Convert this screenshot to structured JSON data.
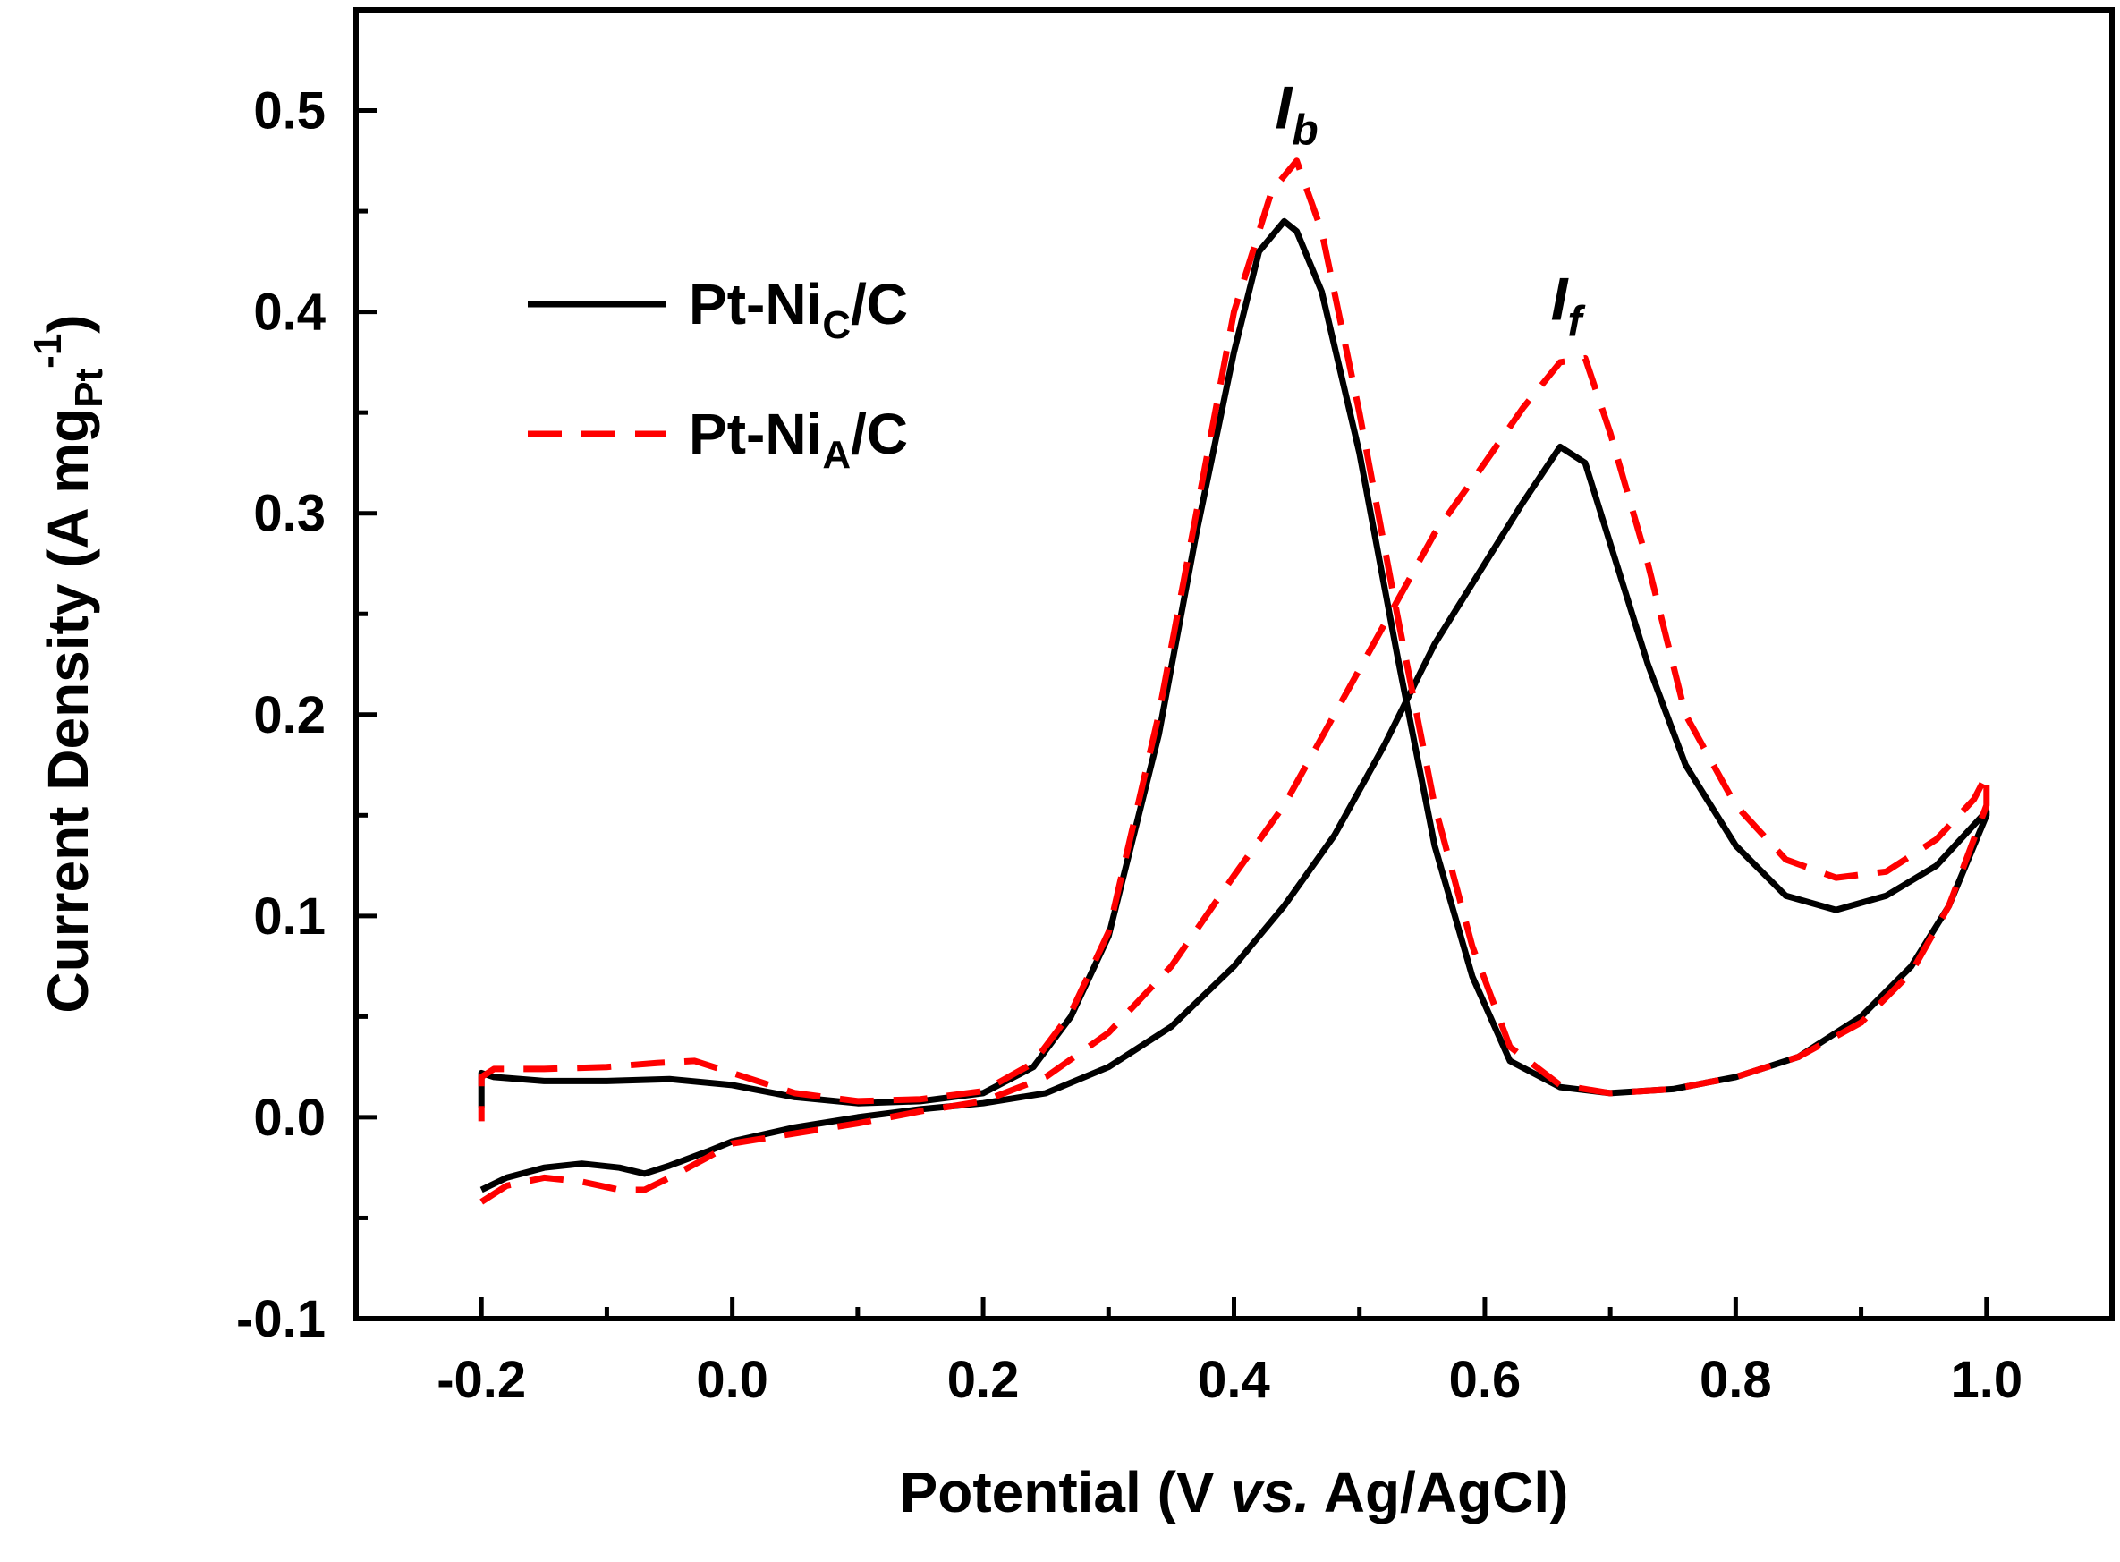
{
  "chart_data": {
    "type": "line",
    "xlabel": {
      "pre": "Potential (V ",
      "italic": "vs.",
      "post": " Ag/AgCl)"
    },
    "ylabel": {
      "main": "Current Density (A mg",
      "sub": "Pt",
      "sup": "-1",
      "close": ")"
    },
    "xlim": [
      -0.3,
      1.1
    ],
    "ylim": [
      -0.1,
      0.55
    ],
    "xticks": [
      "-0.2",
      "0.0",
      "0.2",
      "0.4",
      "0.6",
      "0.8",
      "1.0"
    ],
    "yticks": [
      "-0.1",
      "0.0",
      "0.1",
      "0.2",
      "0.3",
      "0.4",
      "0.5"
    ],
    "grid": false,
    "legend_position": "upper-left",
    "annotations": [
      {
        "base": "I",
        "sub": "b",
        "x": 0.45,
        "y": 0.5
      },
      {
        "base": "I",
        "sub": "f",
        "x": 0.665,
        "y": 0.405
      }
    ],
    "series": [
      {
        "name": {
          "base": "Pt-Ni",
          "sub": "C",
          "tail": "/C"
        },
        "color": "#000000",
        "style": "solid",
        "points": [
          [
            -0.2,
            -0.036
          ],
          [
            -0.18,
            -0.03
          ],
          [
            -0.15,
            -0.025
          ],
          [
            -0.12,
            -0.023
          ],
          [
            -0.09,
            -0.025
          ],
          [
            -0.07,
            -0.028
          ],
          [
            -0.05,
            -0.024
          ],
          [
            -0.02,
            -0.017
          ],
          [
            0.0,
            -0.012
          ],
          [
            0.05,
            -0.005
          ],
          [
            0.1,
            0.0
          ],
          [
            0.15,
            0.004
          ],
          [
            0.2,
            0.007
          ],
          [
            0.25,
            0.012
          ],
          [
            0.3,
            0.025
          ],
          [
            0.35,
            0.045
          ],
          [
            0.4,
            0.075
          ],
          [
            0.44,
            0.105
          ],
          [
            0.48,
            0.14
          ],
          [
            0.52,
            0.185
          ],
          [
            0.56,
            0.235
          ],
          [
            0.6,
            0.275
          ],
          [
            0.63,
            0.305
          ],
          [
            0.66,
            0.333
          ],
          [
            0.68,
            0.325
          ],
          [
            0.7,
            0.285
          ],
          [
            0.73,
            0.225
          ],
          [
            0.76,
            0.175
          ],
          [
            0.8,
            0.135
          ],
          [
            0.84,
            0.11
          ],
          [
            0.88,
            0.103
          ],
          [
            0.92,
            0.11
          ],
          [
            0.96,
            0.125
          ],
          [
            1.0,
            0.152
          ],
          [
            1.0,
            0.15
          ],
          [
            0.97,
            0.105
          ],
          [
            0.94,
            0.075
          ],
          [
            0.9,
            0.05
          ],
          [
            0.85,
            0.03
          ],
          [
            0.8,
            0.02
          ],
          [
            0.75,
            0.014
          ],
          [
            0.7,
            0.012
          ],
          [
            0.66,
            0.015
          ],
          [
            0.62,
            0.028
          ],
          [
            0.59,
            0.07
          ],
          [
            0.56,
            0.135
          ],
          [
            0.53,
            0.23
          ],
          [
            0.5,
            0.33
          ],
          [
            0.47,
            0.41
          ],
          [
            0.45,
            0.44
          ],
          [
            0.44,
            0.445
          ],
          [
            0.42,
            0.43
          ],
          [
            0.4,
            0.38
          ],
          [
            0.37,
            0.29
          ],
          [
            0.34,
            0.19
          ],
          [
            0.3,
            0.09
          ],
          [
            0.27,
            0.05
          ],
          [
            0.24,
            0.025
          ],
          [
            0.2,
            0.012
          ],
          [
            0.15,
            0.008
          ],
          [
            0.1,
            0.007
          ],
          [
            0.05,
            0.01
          ],
          [
            0.0,
            0.016
          ],
          [
            -0.05,
            0.019
          ],
          [
            -0.1,
            0.018
          ],
          [
            -0.15,
            0.018
          ],
          [
            -0.19,
            0.02
          ],
          [
            -0.2,
            0.022
          ],
          [
            -0.2,
            0.005
          ]
        ]
      },
      {
        "name": {
          "base": "Pt-Ni",
          "sub": "A",
          "tail": "/C"
        },
        "color": "#ff0000",
        "style": "dashed",
        "points": [
          [
            -0.2,
            -0.042
          ],
          [
            -0.18,
            -0.034
          ],
          [
            -0.15,
            -0.03
          ],
          [
            -0.12,
            -0.032
          ],
          [
            -0.09,
            -0.036
          ],
          [
            -0.07,
            -0.036
          ],
          [
            -0.05,
            -0.03
          ],
          [
            -0.02,
            -0.02
          ],
          [
            0.0,
            -0.013
          ],
          [
            0.05,
            -0.008
          ],
          [
            0.1,
            -0.003
          ],
          [
            0.15,
            0.003
          ],
          [
            0.2,
            0.008
          ],
          [
            0.25,
            0.02
          ],
          [
            0.3,
            0.042
          ],
          [
            0.35,
            0.075
          ],
          [
            0.4,
            0.12
          ],
          [
            0.44,
            0.155
          ],
          [
            0.48,
            0.2
          ],
          [
            0.52,
            0.245
          ],
          [
            0.56,
            0.29
          ],
          [
            0.6,
            0.325
          ],
          [
            0.63,
            0.352
          ],
          [
            0.66,
            0.375
          ],
          [
            0.68,
            0.377
          ],
          [
            0.7,
            0.34
          ],
          [
            0.73,
            0.275
          ],
          [
            0.76,
            0.2
          ],
          [
            0.8,
            0.155
          ],
          [
            0.84,
            0.128
          ],
          [
            0.88,
            0.119
          ],
          [
            0.92,
            0.122
          ],
          [
            0.96,
            0.138
          ],
          [
            0.99,
            0.158
          ],
          [
            1.0,
            0.17
          ],
          [
            1.0,
            0.155
          ],
          [
            0.97,
            0.105
          ],
          [
            0.94,
            0.072
          ],
          [
            0.9,
            0.047
          ],
          [
            0.85,
            0.03
          ],
          [
            0.8,
            0.02
          ],
          [
            0.75,
            0.014
          ],
          [
            0.7,
            0.012
          ],
          [
            0.66,
            0.016
          ],
          [
            0.62,
            0.035
          ],
          [
            0.59,
            0.085
          ],
          [
            0.56,
            0.155
          ],
          [
            0.53,
            0.25
          ],
          [
            0.5,
            0.35
          ],
          [
            0.47,
            0.44
          ],
          [
            0.45,
            0.475
          ],
          [
            0.43,
            0.46
          ],
          [
            0.4,
            0.4
          ],
          [
            0.37,
            0.3
          ],
          [
            0.34,
            0.2
          ],
          [
            0.3,
            0.092
          ],
          [
            0.27,
            0.052
          ],
          [
            0.24,
            0.027
          ],
          [
            0.2,
            0.013
          ],
          [
            0.15,
            0.009
          ],
          [
            0.1,
            0.008
          ],
          [
            0.05,
            0.012
          ],
          [
            0.0,
            0.022
          ],
          [
            -0.03,
            0.028
          ],
          [
            -0.06,
            0.027
          ],
          [
            -0.1,
            0.025
          ],
          [
            -0.15,
            0.024
          ],
          [
            -0.19,
            0.024
          ],
          [
            -0.2,
            0.02
          ],
          [
            -0.2,
            -0.002
          ]
        ]
      }
    ]
  }
}
